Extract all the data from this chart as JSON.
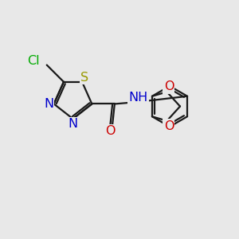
{
  "background_color": "#e8e8e8",
  "bond_color": "#1a1a1a",
  "S_color": "#999900",
  "N_color": "#0000cc",
  "O_color": "#cc0000",
  "Cl_color": "#00aa00",
  "lw": 1.6,
  "font_size": 11.5,
  "xlim": [
    0,
    10
  ],
  "ylim": [
    0,
    10
  ]
}
